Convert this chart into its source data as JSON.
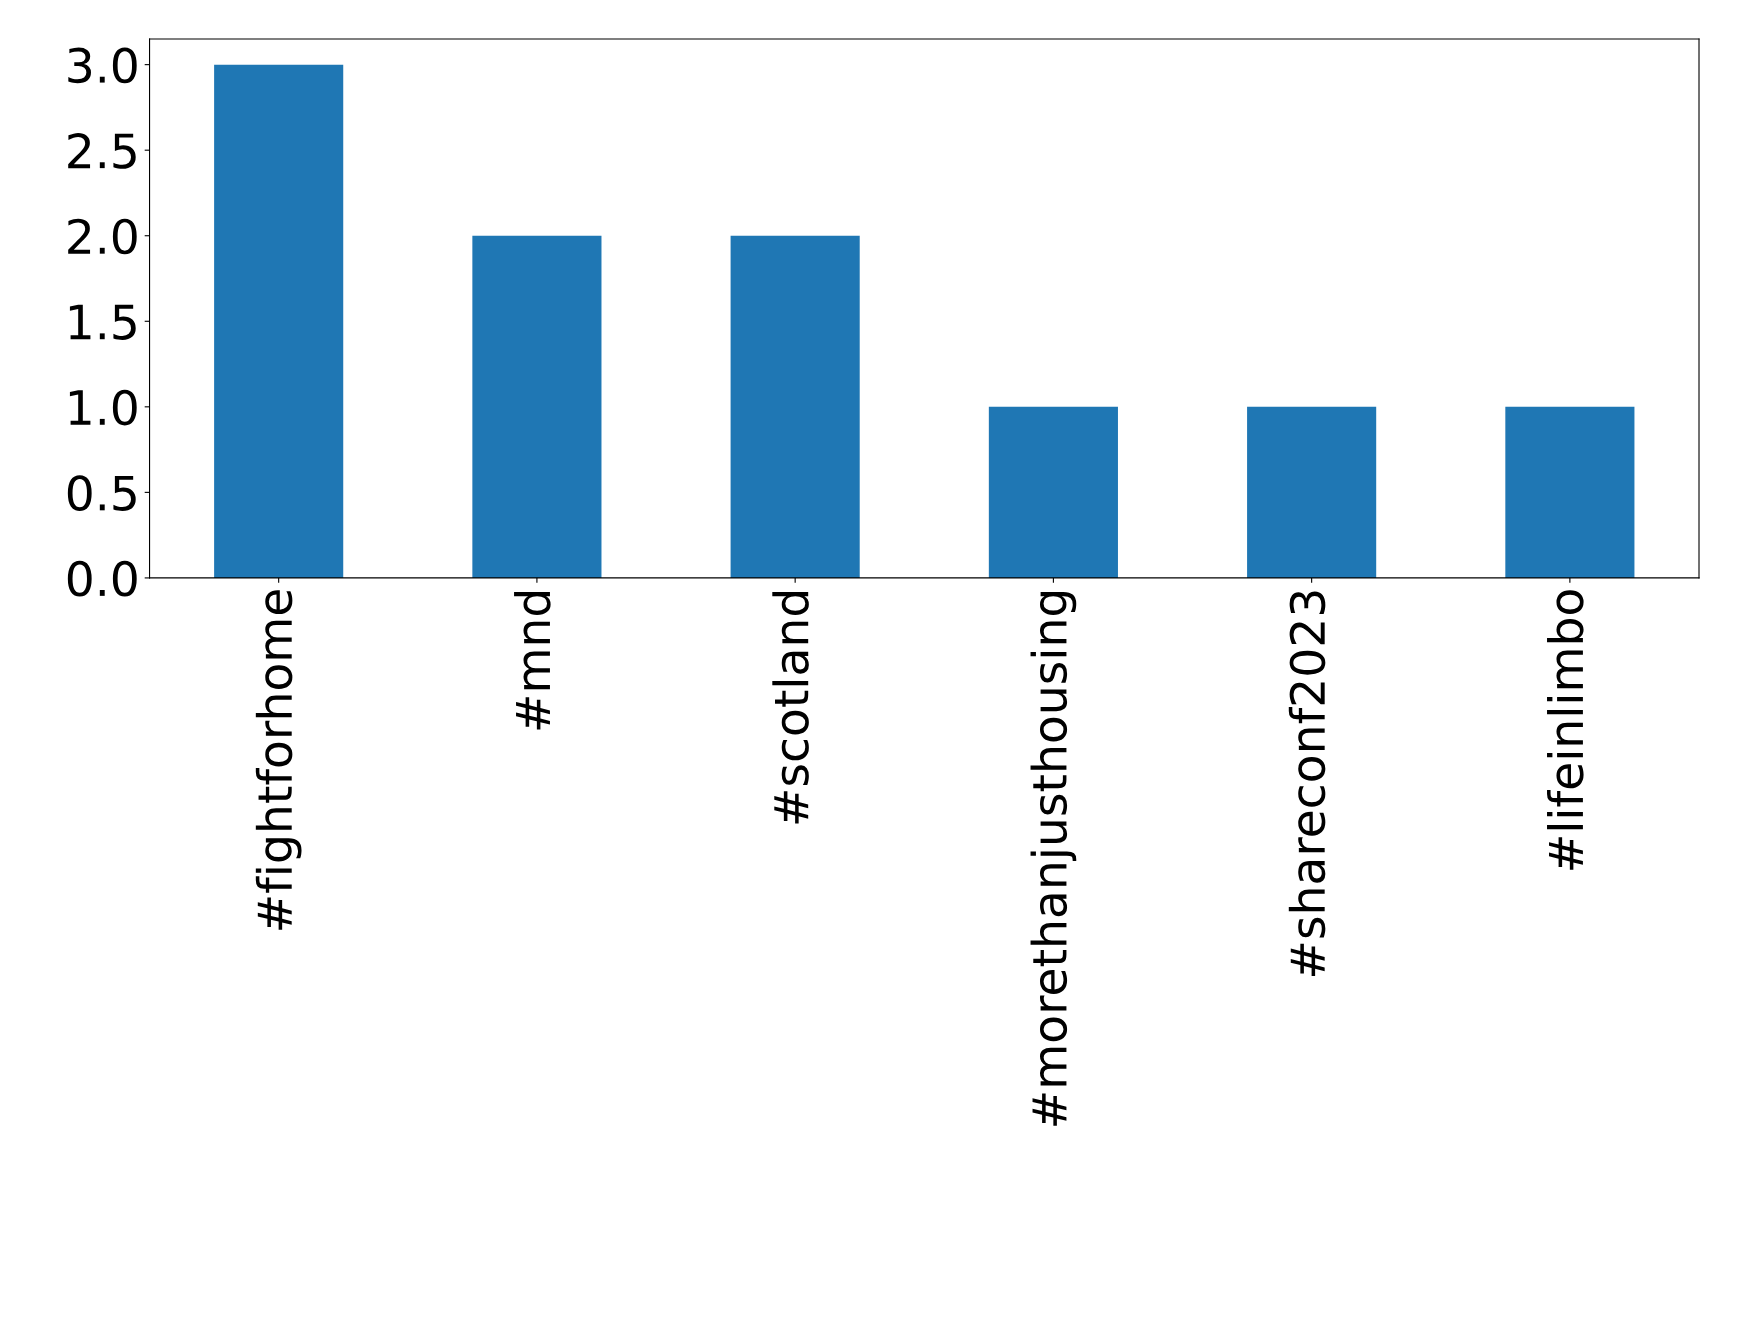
{
  "chart_data": {
    "type": "bar",
    "categories": [
      "#fightforhome",
      "#mnd",
      "#scotland",
      "#morethanjusthousing",
      "#shareconf2023",
      "#lifeinlimbo"
    ],
    "values": [
      3,
      2,
      2,
      1,
      1,
      1
    ],
    "color": "#1f77b4",
    "ylim": [
      0,
      3.15
    ],
    "yticks": [
      {
        "value": 0,
        "label": "0.0"
      },
      {
        "value": 0.5,
        "label": "0.5"
      },
      {
        "value": 1,
        "label": "1.0"
      },
      {
        "value": 1.5,
        "label": "1.5"
      },
      {
        "value": 2,
        "label": "2.0"
      },
      {
        "value": 2.5,
        "label": "2.5"
      },
      {
        "value": 3,
        "label": "3.0"
      }
    ],
    "grid": false,
    "legend": false
  }
}
